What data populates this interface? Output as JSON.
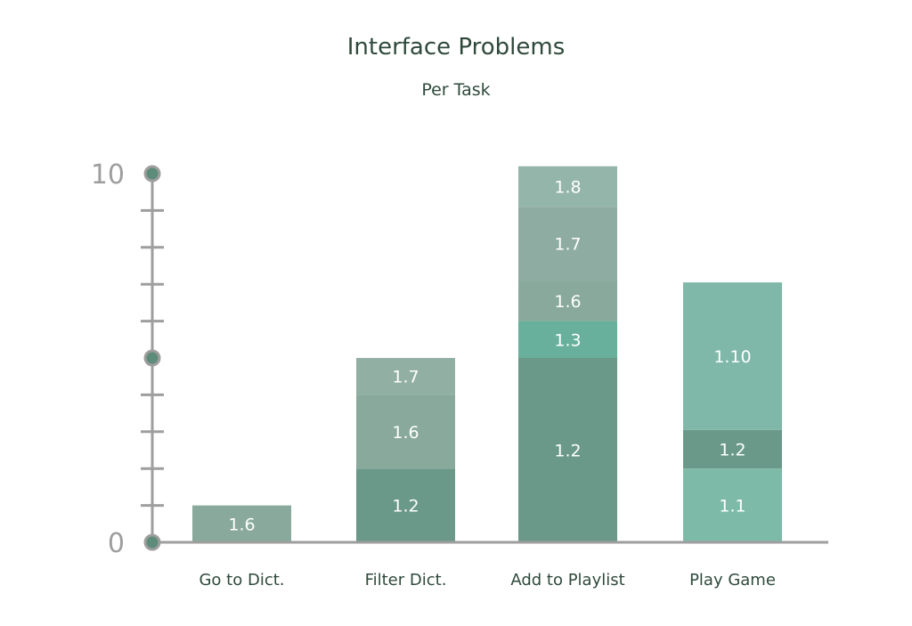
{
  "chart_data": {
    "type": "bar",
    "stacked": true,
    "title": "Interface Problems",
    "subtitle": "Per Task",
    "xlabel": "",
    "ylabel": "",
    "ylim": [
      0,
      10
    ],
    "ytick_labels": [
      "0",
      "10"
    ],
    "ymajor_ticks": [
      0,
      5,
      10
    ],
    "categories": [
      "Go to Dict.",
      "Filter Dict.",
      "Add to Playlist",
      "Play Game"
    ],
    "stacks": [
      {
        "category": "Go to Dict.",
        "segments": [
          {
            "label": "1.6",
            "value": 1,
            "color": "#88a99c"
          }
        ]
      },
      {
        "category": "Filter Dict.",
        "segments": [
          {
            "label": "1.2",
            "value": 2,
            "color": "#6a998a"
          },
          {
            "label": "1.6",
            "value": 2,
            "color": "#88a99c"
          },
          {
            "label": "1.7",
            "value": 1,
            "color": "#92afa4"
          }
        ]
      },
      {
        "category": "Add to Playlist",
        "segments": [
          {
            "label": "1.2",
            "value": 5,
            "color": "#6a998a"
          },
          {
            "label": "1.3",
            "value": 1,
            "color": "#68b09b"
          },
          {
            "label": "1.6",
            "value": 1.1,
            "color": "#88a99c"
          },
          {
            "label": "1.7",
            "value": 2,
            "color": "#8eaca1"
          },
          {
            "label": "1.8",
            "value": 1.1,
            "color": "#94b5a9"
          }
        ]
      },
      {
        "category": "Play Game",
        "segments": [
          {
            "label": "1.1",
            "value": 2,
            "color": "#7ebaa8"
          },
          {
            "label": "1.2",
            "value": 1.05,
            "color": "#6a998a"
          },
          {
            "label": "1.10",
            "value": 4,
            "color": "#7fb8a8"
          }
        ]
      }
    ],
    "grid": false,
    "legend": "none"
  },
  "colors": {
    "axis": "#9e9e9e",
    "marker": "#5e8c7b",
    "title": "#2f4a3c"
  }
}
